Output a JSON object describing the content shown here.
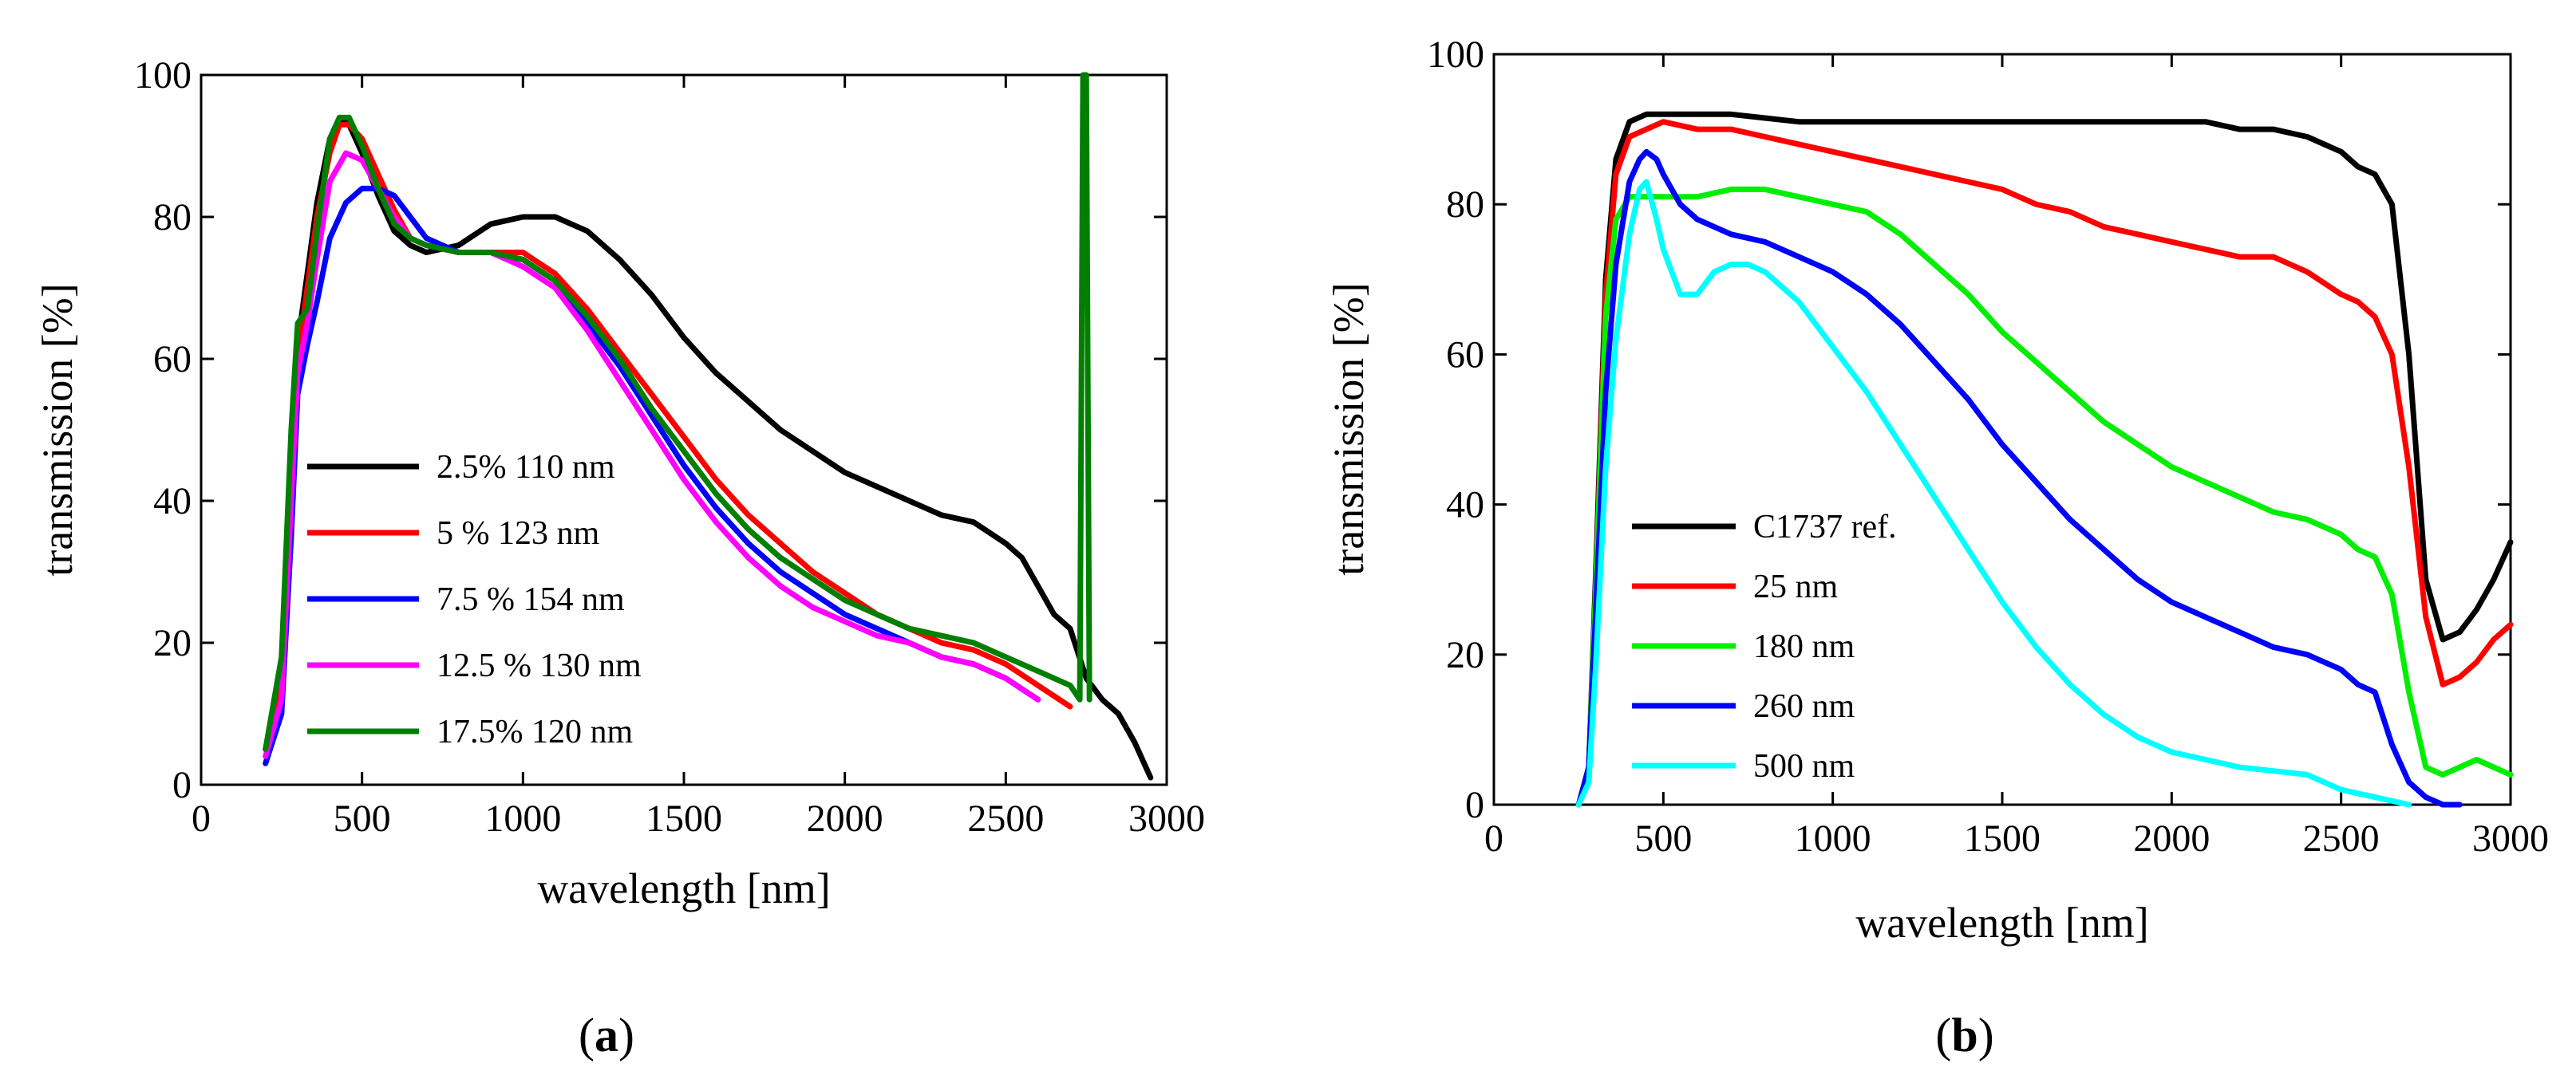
{
  "chart_data": [
    {
      "type": "line",
      "panel_label": {
        "open": "(",
        "letter": "a",
        "close": ")"
      },
      "title": "",
      "xlabel": "wavelength [nm]",
      "ylabel": "transmission [%]",
      "xlim": [
        0,
        3000
      ],
      "ylim": [
        0,
        100
      ],
      "xticks": [
        0,
        500,
        1000,
        1500,
        2000,
        2500,
        3000
      ],
      "yticks": [
        0,
        20,
        40,
        60,
        80,
        100
      ],
      "grid": false,
      "legend_position": "lower-left",
      "series": [
        {
          "name": "2.5% 110 nm",
          "color": "#000000",
          "x": [
            200,
            250,
            280,
            300,
            330,
            360,
            400,
            430,
            460,
            500,
            550,
            600,
            650,
            700,
            800,
            900,
            1000,
            1100,
            1200,
            1300,
            1400,
            1500,
            1600,
            1700,
            1800,
            1900,
            2000,
            2100,
            2200,
            2300,
            2400,
            2500,
            2550,
            2600,
            2650,
            2700,
            2750,
            2800,
            2850,
            2900,
            2950
          ],
          "y": [
            5,
            15,
            45,
            62,
            72,
            82,
            91,
            94,
            93,
            89,
            83,
            78,
            76,
            75,
            76,
            79,
            80,
            80,
            78,
            74,
            69,
            63,
            58,
            54,
            50,
            47,
            44,
            42,
            40,
            38,
            37,
            34,
            32,
            28,
            24,
            22,
            15,
            12,
            10,
            6,
            1
          ]
        },
        {
          "name": "5 % 123 nm",
          "color": "#ff0000",
          "x": [
            200,
            250,
            280,
            300,
            330,
            360,
            400,
            430,
            460,
            500,
            550,
            600,
            650,
            700,
            800,
            900,
            1000,
            1100,
            1200,
            1300,
            1400,
            1500,
            1600,
            1700,
            1800,
            1900,
            2000,
            2100,
            2200,
            2300,
            2400,
            2500,
            2600,
            2700
          ],
          "y": [
            5,
            14,
            42,
            60,
            70,
            80,
            89,
            93,
            93,
            91,
            86,
            81,
            77,
            76,
            75,
            75,
            75,
            72,
            67,
            61,
            55,
            49,
            43,
            38,
            34,
            30,
            27,
            24,
            22,
            20,
            19,
            17,
            14,
            11
          ]
        },
        {
          "name": "7.5 % 154 nm",
          "color": "#0000ff",
          "x": [
            200,
            250,
            280,
            300,
            330,
            360,
            400,
            450,
            500,
            550,
            600,
            650,
            700,
            800,
            900,
            1000,
            1100,
            1200,
            1300,
            1400,
            1500,
            1600,
            1700,
            1800,
            1900,
            2000,
            2100,
            2200,
            2300,
            2400,
            2500,
            2600
          ],
          "y": [
            3,
            10,
            35,
            55,
            62,
            68,
            77,
            82,
            84,
            84,
            83,
            80,
            77,
            75,
            75,
            74,
            71,
            65,
            59,
            52,
            45,
            39,
            34,
            30,
            27,
            24,
            22,
            20,
            18,
            17,
            15,
            12
          ]
        },
        {
          "name": "12.5 % 130 nm",
          "color": "#ff00ff",
          "x": [
            200,
            250,
            280,
            300,
            330,
            360,
            400,
            450,
            500,
            550,
            600,
            650,
            700,
            800,
            900,
            1000,
            1100,
            1200,
            1300,
            1400,
            1500,
            1600,
            1700,
            1800,
            1900,
            2000,
            2100,
            2200,
            2300,
            2400,
            2500,
            2600
          ],
          "y": [
            4,
            12,
            40,
            58,
            65,
            74,
            85,
            89,
            88,
            84,
            80,
            77,
            76,
            75,
            75,
            73,
            70,
            64,
            57,
            50,
            43,
            37,
            32,
            28,
            25,
            23,
            21,
            20,
            18,
            17,
            15,
            12
          ]
        },
        {
          "name": "17.5% 120 nm",
          "color": "#007f00",
          "x": [
            200,
            250,
            280,
            300,
            330,
            360,
            400,
            430,
            460,
            500,
            550,
            600,
            650,
            700,
            800,
            900,
            1000,
            1100,
            1200,
            1300,
            1400,
            1500,
            1600,
            1700,
            1800,
            1900,
            2000,
            2100,
            2200,
            2300,
            2400,
            2500,
            2600,
            2700,
            2730,
            2740,
            2750,
            2760
          ],
          "y": [
            5,
            18,
            50,
            65,
            67,
            78,
            91,
            94,
            94,
            90,
            84,
            79,
            77,
            76,
            75,
            75,
            74,
            71,
            66,
            60,
            53,
            47,
            41,
            36,
            32,
            29,
            26,
            24,
            22,
            21,
            20,
            18,
            16,
            14,
            12,
            100,
            100,
            12
          ]
        }
      ]
    },
    {
      "type": "line",
      "panel_label": {
        "open": "(",
        "letter": "b",
        "close": ")"
      },
      "title": "",
      "xlabel": "wavelength [nm]",
      "ylabel": "transmission [%]",
      "xlim": [
        0,
        3000
      ],
      "ylim": [
        0,
        100
      ],
      "xticks": [
        0,
        500,
        1000,
        1500,
        2000,
        2500,
        3000
      ],
      "yticks": [
        0,
        20,
        40,
        60,
        80,
        100
      ],
      "grid": false,
      "legend_position": "lower-left",
      "series": [
        {
          "name": "C1737 ref.",
          "color": "#000000",
          "x": [
            250,
            280,
            300,
            330,
            360,
            400,
            450,
            500,
            600,
            700,
            800,
            900,
            1000,
            1200,
            1400,
            1500,
            1600,
            1800,
            2000,
            2100,
            2200,
            2300,
            2400,
            2500,
            2550,
            2600,
            2650,
            2700,
            2750,
            2800,
            2850,
            2900,
            2950,
            3000
          ],
          "y": [
            0,
            5,
            30,
            70,
            86,
            91,
            92,
            92,
            92,
            92,
            91.5,
            91,
            91,
            91,
            91,
            91,
            91,
            91,
            91,
            91,
            90,
            90,
            89,
            87,
            85,
            84,
            80,
            60,
            30,
            22,
            23,
            26,
            30,
            35
          ]
        },
        {
          "name": "25 nm",
          "color": "#ff0000",
          "x": [
            250,
            280,
            300,
            330,
            360,
            400,
            450,
            500,
            600,
            700,
            800,
            900,
            1000,
            1100,
            1200,
            1300,
            1400,
            1500,
            1600,
            1700,
            1800,
            1900,
            2000,
            2100,
            2200,
            2300,
            2400,
            2500,
            2550,
            2600,
            2650,
            2700,
            2750,
            2800,
            2850,
            2900,
            2950,
            3000
          ],
          "y": [
            0,
            5,
            28,
            68,
            84,
            89,
            90,
            91,
            90,
            90,
            89,
            88,
            87,
            86,
            85,
            84,
            83,
            82,
            80,
            79,
            77,
            76,
            75,
            74,
            73,
            73,
            71,
            68,
            67,
            65,
            60,
            45,
            25,
            16,
            17,
            19,
            22,
            24
          ]
        },
        {
          "name": "180 nm",
          "color": "#00ee00",
          "x": [
            250,
            280,
            300,
            330,
            360,
            400,
            450,
            500,
            600,
            700,
            800,
            900,
            1000,
            1100,
            1200,
            1300,
            1400,
            1500,
            1600,
            1700,
            1800,
            1900,
            2000,
            2100,
            2200,
            2300,
            2400,
            2500,
            2550,
            2600,
            2650,
            2700,
            2750,
            2800,
            2850,
            2900,
            2950,
            3000
          ],
          "y": [
            0,
            5,
            28,
            65,
            78,
            81,
            81,
            81,
            81,
            82,
            82,
            81,
            80,
            79,
            76,
            72,
            68,
            63,
            59,
            55,
            51,
            48,
            45,
            43,
            41,
            39,
            38,
            36,
            34,
            33,
            28,
            15,
            5,
            4,
            5,
            6,
            5,
            4
          ]
        },
        {
          "name": "260 nm",
          "color": "#0000ff",
          "x": [
            250,
            280,
            300,
            330,
            360,
            400,
            430,
            450,
            480,
            500,
            550,
            600,
            700,
            800,
            900,
            1000,
            1100,
            1200,
            1300,
            1400,
            1500,
            1600,
            1700,
            1800,
            1900,
            2000,
            2100,
            2200,
            2300,
            2400,
            2500,
            2550,
            2600,
            2650,
            2700,
            2750,
            2800,
            2850
          ],
          "y": [
            0,
            5,
            25,
            55,
            72,
            83,
            86,
            87,
            86,
            84,
            80,
            78,
            76,
            75,
            73,
            71,
            68,
            64,
            59,
            54,
            48,
            43,
            38,
            34,
            30,
            27,
            25,
            23,
            21,
            20,
            18,
            16,
            15,
            8,
            3,
            1,
            0,
            0
          ]
        },
        {
          "name": "500 nm",
          "color": "#00ffff",
          "x": [
            250,
            280,
            300,
            330,
            360,
            400,
            430,
            450,
            480,
            500,
            550,
            600,
            650,
            700,
            750,
            800,
            900,
            1000,
            1100,
            1200,
            1300,
            1400,
            1500,
            1600,
            1700,
            1800,
            1900,
            2000,
            2100,
            2200,
            2300,
            2400,
            2500,
            2550,
            2600,
            2650,
            2700
          ],
          "y": [
            0,
            3,
            18,
            45,
            62,
            76,
            82,
            83,
            78,
            74,
            68,
            68,
            71,
            72,
            72,
            71,
            67,
            61,
            55,
            48,
            41,
            34,
            27,
            21,
            16,
            12,
            9,
            7,
            6,
            5,
            4.5,
            4,
            2,
            1.5,
            1,
            0.5,
            0
          ]
        }
      ]
    }
  ]
}
